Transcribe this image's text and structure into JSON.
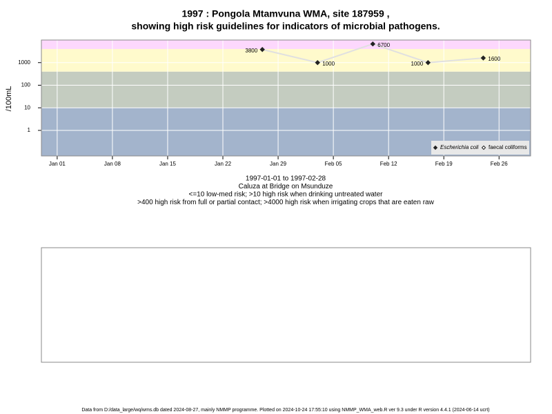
{
  "chart_data": {
    "type": "line",
    "log_y": true,
    "title": "1997 : Pongola Mtamvuna WMA, site 187959 ,",
    "title_line2": "showing high risk guidelines for indicators of microbial pathogens.",
    "ylabel": "/100mL",
    "subtitles": [
      "1997-01-01 to 1997-02-28",
      "Caluza at Bridge on Msunduze",
      "<=10 low-med risk; >10 high risk when drinking untreated water",
      ">400 high risk from full or partial contact; >4000 high risk when irrigating crops that are eaten raw"
    ],
    "x": [
      "1997-01-27",
      "1997-02-03",
      "1997-02-10",
      "1997-02-17",
      "1997-02-24"
    ],
    "series": [
      {
        "name": "Escherichia coli",
        "color": "#222222",
        "line_color": "#e0e0e0",
        "values": [
          3800,
          1000,
          6700,
          1000,
          1600
        ]
      },
      {
        "name": "faecal coliforms",
        "color": "#222222",
        "values": [
          null,
          null,
          null,
          null,
          null
        ]
      }
    ],
    "xlim": [
      "1996-12-30",
      "1997-03-02"
    ],
    "xticks": [
      {
        "value": "1997-01-01",
        "label": "Jan 01"
      },
      {
        "value": "1997-01-08",
        "label": "Jan 08"
      },
      {
        "value": "1997-01-15",
        "label": "Jan 15"
      },
      {
        "value": "1997-01-22",
        "label": "Jan 22"
      },
      {
        "value": "1997-01-29",
        "label": "Jan 29"
      },
      {
        "value": "1997-02-05",
        "label": "Feb 05"
      },
      {
        "value": "1997-02-12",
        "label": "Feb 12"
      },
      {
        "value": "1997-02-19",
        "label": "Feb 19"
      },
      {
        "value": "1997-02-26",
        "label": "Feb 26"
      }
    ],
    "ylim": [
      0.074,
      10000
    ],
    "yticks": [
      1,
      10,
      100,
      1000
    ],
    "thresholds": [
      10,
      400,
      4000
    ],
    "band_colors": [
      "#a3b4cc",
      "#c4ccc0",
      "#fffacc",
      "#fdd8fd"
    ],
    "grid": true,
    "legend": "bottom-right"
  },
  "footer": "Data from D:/data_large/wq/wms.db dated 2024-08-27, mainly NMMP programme. Plotted on 2024-10-24 17:55:10 using NMMP_WMA_web.R ver 9.3 under R version 4.4.1 (2024-06-14 ucrt)"
}
